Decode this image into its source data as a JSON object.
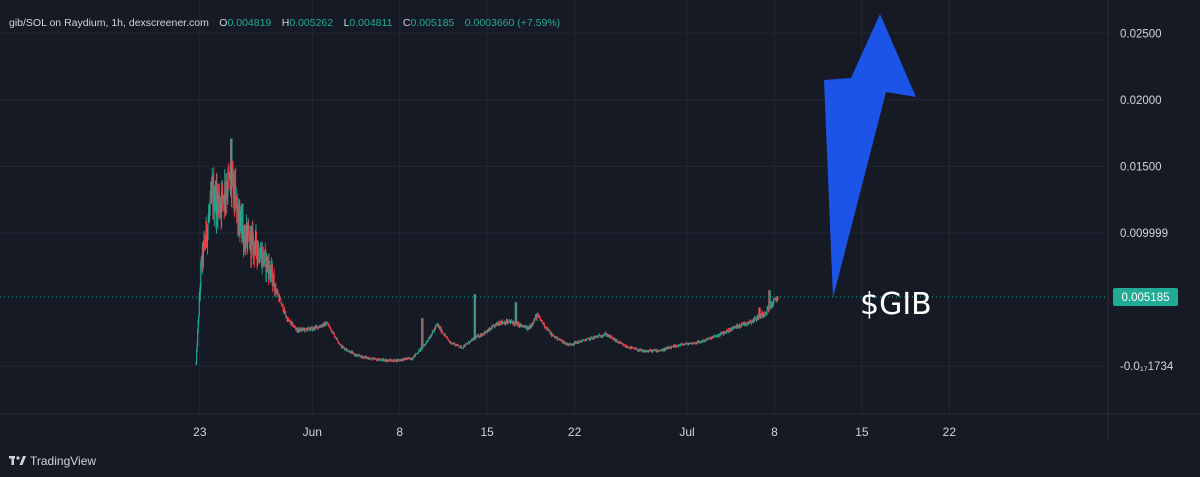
{
  "chart_data": {
    "type": "candlestick",
    "symbol": "gib/SOL on Raydium",
    "interval": "1h",
    "source": "dexscreener.com",
    "ohlc": {
      "o_label": "O",
      "o": "0.004819",
      "h_label": "H",
      "h": "0.005262",
      "l_label": "L",
      "l": "0.004811",
      "c_label": "C",
      "c": "0.005185",
      "change": "0.0003660 (+7.59%)"
    },
    "y_ticks": [
      "0.02500",
      "0.02000",
      "0.01500",
      "0.009999",
      "-0.0₁₇1734"
    ],
    "y_tick_values": [
      0.025,
      0.02,
      0.015,
      0.009999,
      0.0
    ],
    "y_range": [
      -0.0036,
      0.0275
    ],
    "x_ticks": [
      "23",
      "Jun",
      "8",
      "15",
      "22",
      "Jul",
      "8",
      "15",
      "22"
    ],
    "x_tick_days": [
      0,
      9,
      16,
      23,
      30,
      39,
      46,
      53,
      60
    ],
    "x_range_days": [
      -16.0,
      72.7
    ],
    "first_day": -0.3,
    "last_day": 46.3,
    "current_price": 0.005185,
    "current_price_label": "0.005185",
    "price_anchors": [
      [
        -0.3,
        0.0002
      ],
      [
        0.1,
        0.0075
      ],
      [
        0.6,
        0.0105
      ],
      [
        1.0,
        0.0128
      ],
      [
        1.6,
        0.0123
      ],
      [
        2.1,
        0.0135
      ],
      [
        2.6,
        0.0138
      ],
      [
        3.1,
        0.0108
      ],
      [
        3.6,
        0.0097
      ],
      [
        4.5,
        0.009
      ],
      [
        5.5,
        0.0075
      ],
      [
        6.3,
        0.0052
      ],
      [
        7.0,
        0.0035
      ],
      [
        7.8,
        0.0027
      ],
      [
        9.0,
        0.0028
      ],
      [
        10.2,
        0.0032
      ],
      [
        11.3,
        0.0015
      ],
      [
        12.5,
        0.0008
      ],
      [
        14.0,
        0.0005
      ],
      [
        15.5,
        0.0004
      ],
      [
        17.0,
        0.0006
      ],
      [
        18.0,
        0.0016
      ],
      [
        19.0,
        0.0031
      ],
      [
        20.0,
        0.0018
      ],
      [
        21.0,
        0.0014
      ],
      [
        22.0,
        0.0021
      ],
      [
        23.0,
        0.0026
      ],
      [
        24.0,
        0.0033
      ],
      [
        25.0,
        0.0033
      ],
      [
        26.3,
        0.0028
      ],
      [
        27.0,
        0.0038
      ],
      [
        28.2,
        0.0023
      ],
      [
        29.5,
        0.0016
      ],
      [
        31.0,
        0.002
      ],
      [
        32.5,
        0.0024
      ],
      [
        34.0,
        0.0015
      ],
      [
        35.5,
        0.0011
      ],
      [
        37.0,
        0.0012
      ],
      [
        38.5,
        0.0016
      ],
      [
        40.0,
        0.0018
      ],
      [
        41.5,
        0.0023
      ],
      [
        43.0,
        0.003
      ],
      [
        44.2,
        0.0034
      ],
      [
        45.2,
        0.004
      ],
      [
        46.3,
        0.005185
      ]
    ],
    "spikes": [
      [
        2.5,
        0.0171
      ],
      [
        1.2,
        0.0135
      ],
      [
        3.4,
        0.0122
      ],
      [
        22.0,
        0.0054
      ],
      [
        25.3,
        0.0048
      ],
      [
        17.8,
        0.0036
      ],
      [
        45.6,
        0.0057
      ],
      [
        44.8,
        0.0044
      ]
    ]
  },
  "annotation": {
    "label": "$GIB",
    "arrow_color": "#1d54e8"
  },
  "brand": {
    "name": "TradingView"
  },
  "colors": {
    "background": "#161a25",
    "grid": "#232733",
    "up": "#22ab94",
    "down": "#f23645",
    "badge": "#22ab94",
    "price_line": "#22ab94",
    "text": "#d1d4dc"
  }
}
